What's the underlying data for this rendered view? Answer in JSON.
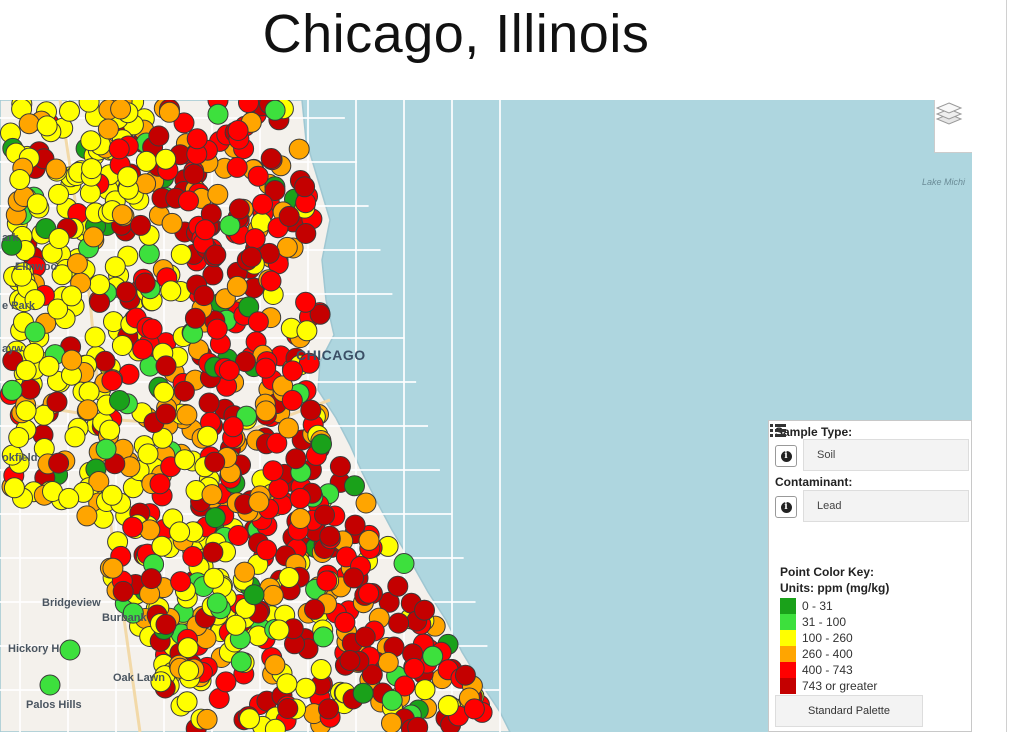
{
  "title": "Chicago, Illinois",
  "map": {
    "place_labels": [
      {
        "id": "park",
        "text": "ark"
      },
      {
        "id": "elmwood",
        "text": "Elmwoo"
      },
      {
        "id": "epark",
        "text": "e Park"
      },
      {
        "id": "ayw",
        "text": "ayw"
      },
      {
        "id": "chicago",
        "text": "CHICAGO"
      },
      {
        "id": "brookfield",
        "text": "okfield"
      },
      {
        "id": "bridgeview",
        "text": "Bridgeview"
      },
      {
        "id": "burbank",
        "text": "Burbank"
      },
      {
        "id": "hickory",
        "text": "Hickory H"
      },
      {
        "id": "oaklawn",
        "text": "Oak Lawn"
      },
      {
        "id": "palos",
        "text": "Palos Hills"
      },
      {
        "id": "lake",
        "text": "Lake Michi"
      }
    ],
    "colors": {
      "land": "#f4f1ec",
      "water": "#aed6df",
      "road": "#ffffff"
    }
  },
  "controls": {
    "layers_icon": "layers-icon",
    "sample_type_label": "Sample Type:",
    "sample_type_value": "Soil",
    "contaminant_label": "Contaminant:",
    "contaminant_value": "Lead",
    "key_title": "Point Color Key:",
    "key_units": "Units: ppm (mg/kg)",
    "key": [
      {
        "label": "0 - 31",
        "color": "#1aa11a"
      },
      {
        "label": "31 - 100",
        "color": "#3de03d"
      },
      {
        "label": "100 - 260",
        "color": "#ffff00"
      },
      {
        "label": "260 - 400",
        "color": "#ffa500"
      },
      {
        "label": "400 - 743",
        "color": "#ff0000"
      },
      {
        "label": "743 or greater",
        "color": "#c40000"
      }
    ],
    "palette_label": "Standard Palette",
    "list_icon": "list-icon"
  }
}
